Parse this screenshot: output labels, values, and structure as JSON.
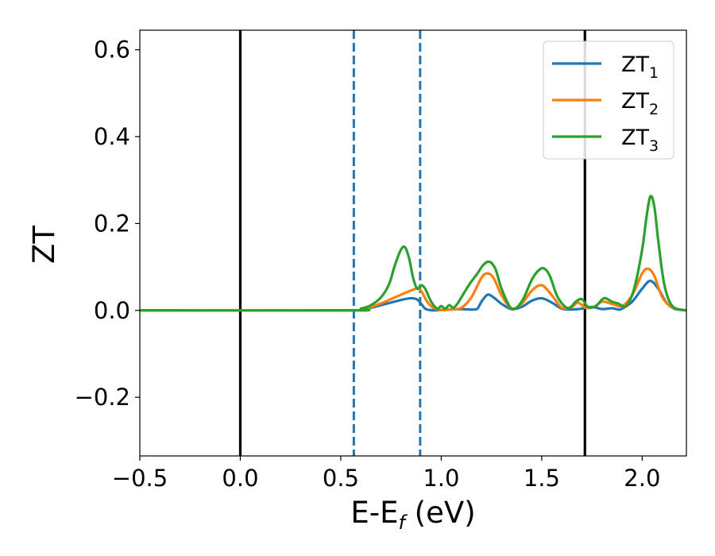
{
  "chart_data": {
    "type": "line",
    "xlabel": {
      "main": "E-E",
      "sub": "f",
      "unit": " (eV)"
    },
    "ylabel": "ZT",
    "xlim": [
      -0.5,
      2.22
    ],
    "ylim": [
      -0.335,
      0.645
    ],
    "xticks": [
      -0.5,
      0.0,
      0.5,
      1.0,
      1.5,
      2.0
    ],
    "xtick_labels": [
      "−0.5",
      "0.0",
      "0.5",
      "1.0",
      "1.5",
      "2.0"
    ],
    "yticks": [
      -0.2,
      0.0,
      0.2,
      0.4,
      0.6
    ],
    "ytick_labels": [
      "−0.2",
      "0.0",
      "0.2",
      "0.4",
      "0.6"
    ],
    "grid": false,
    "legend_position": "top-right",
    "vlines": [
      {
        "x": 0.0,
        "style": "solid",
        "color": "#000000"
      },
      {
        "x": 1.715,
        "style": "solid",
        "color": "#000000"
      },
      {
        "x": 0.565,
        "style": "dashed",
        "color": "#1f77b4"
      },
      {
        "x": 0.895,
        "style": "dashed",
        "color": "#1f77b4"
      }
    ],
    "series": [
      {
        "name": "ZT",
        "sub": "1",
        "color": "#1f77b4",
        "x": [
          -0.5,
          0.55,
          0.6,
          0.65,
          0.7,
          0.75,
          0.8,
          0.85,
          0.88,
          0.9,
          0.92,
          0.94,
          0.96,
          1.0,
          1.05,
          1.1,
          1.15,
          1.18,
          1.2,
          1.23,
          1.26,
          1.3,
          1.35,
          1.4,
          1.45,
          1.5,
          1.55,
          1.6,
          1.65,
          1.7,
          1.75,
          1.8,
          1.85,
          1.88,
          1.9,
          1.95,
          2.0,
          2.04,
          2.08,
          2.12,
          2.16,
          2.22
        ],
        "y": [
          0.0,
          0.0,
          0.002,
          0.006,
          0.012,
          0.018,
          0.024,
          0.028,
          0.025,
          0.015,
          0.004,
          0.001,
          0.0,
          0.001,
          0.002,
          0.003,
          0.002,
          0.004,
          0.02,
          0.036,
          0.03,
          0.015,
          0.003,
          0.008,
          0.022,
          0.028,
          0.018,
          0.004,
          0.002,
          0.004,
          0.008,
          0.003,
          0.005,
          0.002,
          0.004,
          0.02,
          0.05,
          0.068,
          0.05,
          0.018,
          0.004,
          0.0
        ]
      },
      {
        "name": "ZT",
        "sub": "2",
        "color": "#ff7f0e",
        "x": [
          -0.5,
          0.55,
          0.6,
          0.65,
          0.7,
          0.75,
          0.8,
          0.85,
          0.88,
          0.9,
          0.93,
          0.96,
          1.0,
          1.05,
          1.1,
          1.15,
          1.2,
          1.23,
          1.26,
          1.3,
          1.35,
          1.4,
          1.45,
          1.5,
          1.55,
          1.6,
          1.65,
          1.68,
          1.72,
          1.76,
          1.8,
          1.85,
          1.9,
          1.95,
          2.0,
          2.03,
          2.06,
          2.1,
          2.15,
          2.22
        ],
        "y": [
          0.0,
          0.0,
          0.003,
          0.008,
          0.016,
          0.026,
          0.036,
          0.046,
          0.05,
          0.045,
          0.02,
          0.006,
          0.001,
          0.002,
          0.006,
          0.03,
          0.075,
          0.085,
          0.075,
          0.035,
          0.005,
          0.015,
          0.045,
          0.058,
          0.035,
          0.006,
          0.008,
          0.018,
          0.006,
          0.008,
          0.02,
          0.015,
          0.01,
          0.035,
          0.085,
          0.096,
          0.08,
          0.03,
          0.007,
          0.0
        ]
      },
      {
        "name": "ZT",
        "sub": "3",
        "color": "#2ca02c",
        "x": [
          -0.5,
          0.55,
          0.6,
          0.65,
          0.7,
          0.74,
          0.77,
          0.8,
          0.82,
          0.84,
          0.86,
          0.88,
          0.9,
          0.92,
          0.95,
          0.98,
          1.0,
          1.02,
          1.04,
          1.06,
          1.08,
          1.1,
          1.14,
          1.18,
          1.21,
          1.24,
          1.27,
          1.3,
          1.35,
          1.4,
          1.45,
          1.48,
          1.51,
          1.54,
          1.58,
          1.63,
          1.67,
          1.7,
          1.73,
          1.77,
          1.81,
          1.85,
          1.88,
          1.92,
          1.96,
          2.0,
          2.02,
          2.04,
          2.06,
          2.08,
          2.11,
          2.15,
          2.22
        ],
        "y": [
          0.0,
          0.0,
          0.004,
          0.012,
          0.03,
          0.06,
          0.105,
          0.14,
          0.145,
          0.12,
          0.075,
          0.05,
          0.058,
          0.05,
          0.02,
          0.004,
          0.01,
          0.004,
          0.012,
          0.006,
          0.015,
          0.03,
          0.06,
          0.085,
          0.105,
          0.112,
          0.095,
          0.05,
          0.004,
          0.02,
          0.07,
          0.09,
          0.097,
          0.08,
          0.03,
          0.005,
          0.02,
          0.026,
          0.008,
          0.01,
          0.028,
          0.02,
          0.016,
          0.01,
          0.05,
          0.14,
          0.21,
          0.262,
          0.24,
          0.16,
          0.06,
          0.01,
          0.0
        ]
      }
    ]
  }
}
